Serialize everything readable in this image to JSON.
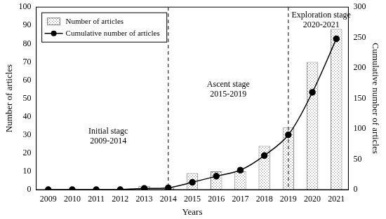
{
  "chart_data": {
    "type": "bar",
    "categories": [
      "2009",
      "2010",
      "2011",
      "2012",
      "2013",
      "2014",
      "2015",
      "2016",
      "2017",
      "2018",
      "2019",
      "2020",
      "2021"
    ],
    "series": [
      {
        "name": "Number of articles",
        "type": "bar",
        "color": "#7f7f7f",
        "values": [
          0,
          0,
          0,
          0,
          2,
          1,
          9,
          10,
          10,
          24,
          34,
          70,
          88
        ]
      },
      {
        "name": "Cumulative number of articles",
        "type": "line",
        "axis": "y2",
        "color": "#000000",
        "marker": "circle",
        "line_style": "solid",
        "values": [
          0,
          0,
          0,
          0,
          2,
          3,
          12,
          22,
          32,
          56,
          90,
          160,
          248
        ]
      }
    ],
    "x_label": "Years",
    "y_label": "Number of articles",
    "y2_label": "Cumulative number of articles",
    "ylim": [
      0,
      100
    ],
    "yticks": [
      0,
      10,
      20,
      30,
      40,
      50,
      60,
      70,
      80,
      90,
      100
    ],
    "y2lim": [
      0,
      300
    ],
    "y2ticks": [
      0,
      50,
      100,
      150,
      200,
      250,
      300
    ],
    "annotations": [
      {
        "lines": [
          "Initial stagc",
          "2009-2014"
        ],
        "from": "2009",
        "to": "2014"
      },
      {
        "lines": [
          "Ascent stage",
          "2015-2019"
        ],
        "from": "2014",
        "to": "2019"
      },
      {
        "lines": [
          "Exploration stage",
          "2020-2021"
        ],
        "from": "2019",
        "to": "2021"
      }
    ],
    "dividers": [
      "2014",
      "2019"
    ],
    "legend": "upper left",
    "grid": false
  }
}
